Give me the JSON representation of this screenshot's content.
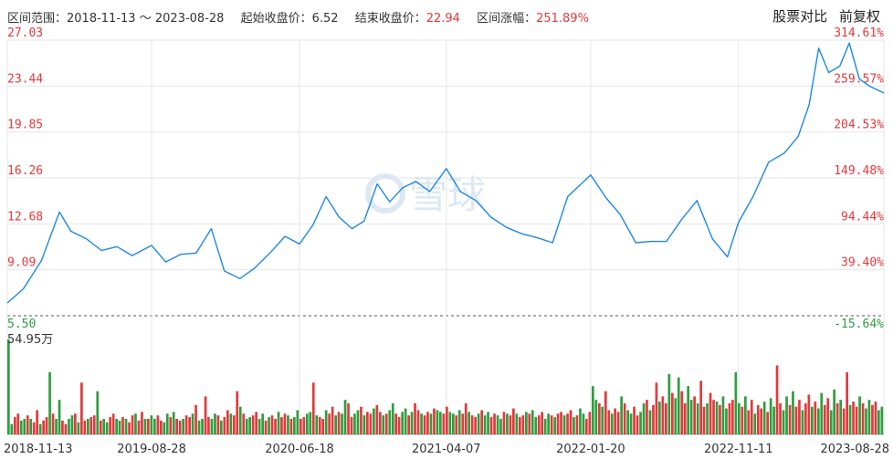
{
  "header": {
    "range_label": "区间范围：",
    "start_date": "2018-11-13",
    "tilde": "～",
    "end_date": "2023-08-28",
    "start_close_label": "起始收盘价：",
    "start_close": "6.52",
    "end_close_label": "结束收盘价：",
    "end_close": "22.94",
    "change_label": "区间涨幅：",
    "change": "251.89%"
  },
  "actions": {
    "compare": "股票对比",
    "adjust": "前复权"
  },
  "watermark": "雪球",
  "colors": {
    "price_line": "#1e88e5",
    "up": "#e4393c",
    "down": "#2e9e3e",
    "grid": "#e6e6e6"
  },
  "chart_data": {
    "type": "line",
    "x_ticks": [
      "2018-11-13",
      "2019-08-28",
      "2020-06-18",
      "2021-04-07",
      "2022-01-20",
      "2022-11-11",
      "2023-08-28"
    ],
    "y_ticks_left": [
      "27.03",
      "23.44",
      "19.85",
      "16.26",
      "12.68",
      "9.09",
      "5.50"
    ],
    "y_ticks_right": [
      "314.61%",
      "259.57%",
      "204.53%",
      "149.48%",
      "94.44%",
      "39.40%",
      "-15.64%"
    ],
    "ylim": [
      5.5,
      27.03
    ],
    "baseline": 6.52,
    "volume_max_label": "54.95万",
    "series": [
      {
        "x": [
          "2018-11-13",
          "2018-12-15",
          "2019-01-20",
          "2019-02-25",
          "2019-03-20",
          "2019-04-20",
          "2019-05-20",
          "2019-06-20",
          "2019-07-20",
          "2019-08-28",
          "2019-09-25",
          "2019-10-25",
          "2019-11-25",
          "2019-12-25",
          "2020-01-20",
          "2020-02-20",
          "2020-03-20",
          "2020-04-20",
          "2020-05-20",
          "2020-06-18",
          "2020-07-15",
          "2020-08-10",
          "2020-09-05",
          "2020-10-01",
          "2020-10-25",
          "2020-11-20",
          "2020-12-15",
          "2021-01-10",
          "2021-02-05",
          "2021-03-05",
          "2021-04-07",
          "2021-05-05",
          "2021-06-05",
          "2021-07-05",
          "2021-08-05",
          "2021-09-05",
          "2021-10-05",
          "2021-11-05",
          "2021-12-05",
          "2022-01-20",
          "2022-02-20",
          "2022-03-20",
          "2022-04-20",
          "2022-05-20",
          "2022-06-20",
          "2022-07-20",
          "2022-08-20",
          "2022-09-20",
          "2022-10-20",
          "2022-11-11",
          "2022-12-10",
          "2023-01-10",
          "2023-02-10",
          "2023-03-10",
          "2023-04-01",
          "2023-04-20",
          "2023-05-10",
          "2023-06-01",
          "2023-06-20",
          "2023-07-10",
          "2023-08-01",
          "2023-08-28"
        ],
        "values": [
          6.5,
          7.6,
          9.8,
          13.6,
          12.1,
          11.5,
          10.6,
          10.9,
          10.2,
          11.0,
          9.7,
          10.3,
          10.4,
          12.3,
          9.0,
          8.4,
          9.2,
          10.4,
          11.7,
          11.1,
          12.6,
          14.8,
          13.2,
          12.3,
          12.9,
          15.8,
          14.4,
          15.5,
          16.0,
          15.2,
          17.0,
          15.2,
          14.5,
          13.2,
          12.4,
          11.9,
          11.6,
          11.2,
          14.8,
          16.5,
          14.7,
          13.4,
          11.2,
          11.3,
          11.3,
          13.0,
          14.5,
          11.5,
          10.1,
          12.8,
          14.8,
          17.5,
          18.2,
          19.5,
          22.0,
          26.4,
          24.5,
          25.0,
          26.8,
          24.0,
          23.4,
          22.9
        ]
      }
    ],
    "volume": [
      {
        "date": "2018-11-13",
        "values": [
          55,
          6,
          10,
          12,
          8,
          9,
          11,
          9,
          7,
          14,
          6,
          8,
          10,
          36,
          12,
          9,
          20,
          8,
          6,
          9,
          11,
          12,
          7,
          30,
          8,
          9,
          10,
          11,
          25,
          8,
          9,
          7,
          10,
          12,
          9,
          8,
          10,
          9,
          7,
          11,
          12,
          8,
          13,
          9,
          9,
          11
        ]
      },
      {
        "date": "2019-08-28",
        "values": [
          9,
          11,
          8,
          7,
          12,
          10,
          13,
          9,
          8,
          9,
          11,
          10,
          12,
          17,
          8,
          9,
          22,
          10,
          9,
          12,
          11,
          8,
          10,
          14,
          12,
          11,
          25,
          16,
          12,
          9,
          10,
          11,
          13,
          9,
          12,
          8,
          10,
          11,
          9,
          13,
          10,
          12,
          11,
          9,
          10,
          14
        ]
      },
      {
        "date": "2020-06-18",
        "values": [
          9,
          10,
          12,
          13,
          30,
          11,
          10,
          9,
          14,
          12,
          16,
          11,
          13,
          12,
          20,
          18,
          10,
          12,
          14,
          16,
          11,
          13,
          12,
          15,
          17,
          13,
          11,
          12,
          14,
          18,
          12,
          10,
          13,
          15,
          11,
          13,
          18,
          14,
          12,
          11,
          13,
          12,
          15,
          14,
          13,
          12
        ]
      },
      {
        "date": "2021-04-07",
        "values": [
          16,
          13,
          12,
          11,
          14,
          12,
          18,
          13,
          11,
          10,
          12,
          14,
          11,
          13,
          10,
          12,
          11,
          9,
          13,
          12,
          11,
          15,
          12,
          10,
          11,
          13,
          12,
          14,
          10,
          11,
          13,
          9,
          12,
          11,
          10,
          12,
          13,
          11,
          12,
          14,
          10,
          11,
          15,
          12,
          9,
          13
        ]
      },
      {
        "date": "2022-01-20",
        "values": [
          28,
          20,
          18,
          16,
          25,
          14,
          12,
          15,
          13,
          22,
          18,
          14,
          12,
          16,
          11,
          13,
          18,
          20,
          14,
          17,
          30,
          19,
          22,
          18,
          35,
          24,
          21,
          33,
          25,
          18,
          28,
          20,
          22,
          18,
          31,
          16,
          18,
          24,
          20,
          19,
          17,
          22,
          15,
          18,
          20,
          36
        ]
      },
      {
        "date": "2022-11-11",
        "values": [
          18,
          16,
          22,
          14,
          20,
          12,
          17,
          15,
          19,
          13,
          21,
          16,
          40,
          18,
          14,
          22,
          17,
          25,
          16,
          20,
          14,
          18,
          23,
          16,
          19,
          15,
          24,
          17,
          21,
          14,
          26,
          18,
          20,
          15,
          36,
          17,
          19,
          16,
          22,
          18,
          15,
          20,
          17,
          19,
          14,
          16
        ]
      }
    ]
  }
}
